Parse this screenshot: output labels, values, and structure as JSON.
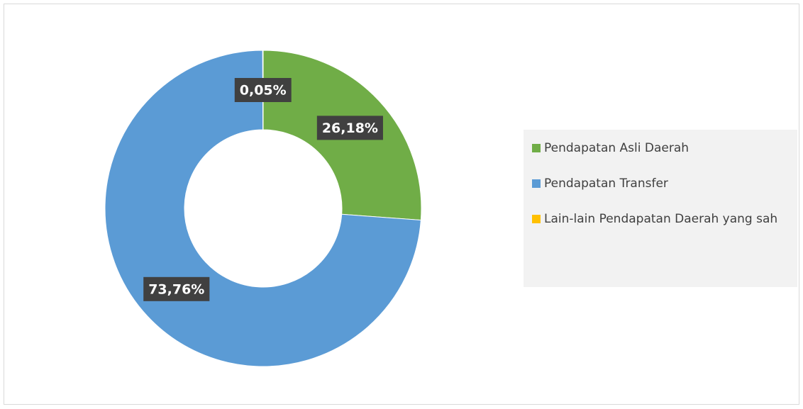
{
  "chart_data": {
    "type": "donut",
    "categories": [
      "Pendapatan Asli Daerah",
      "Pendapatan Transfer",
      "Lain-lain Pendapatan Daerah yang sah"
    ],
    "values": [
      26.18,
      73.76,
      0.05
    ],
    "value_labels": [
      "26,18%",
      "73,76%",
      "0,05%"
    ],
    "colors": [
      "#70ad47",
      "#5b9bd5",
      "#ffc000"
    ],
    "legend": "right"
  }
}
